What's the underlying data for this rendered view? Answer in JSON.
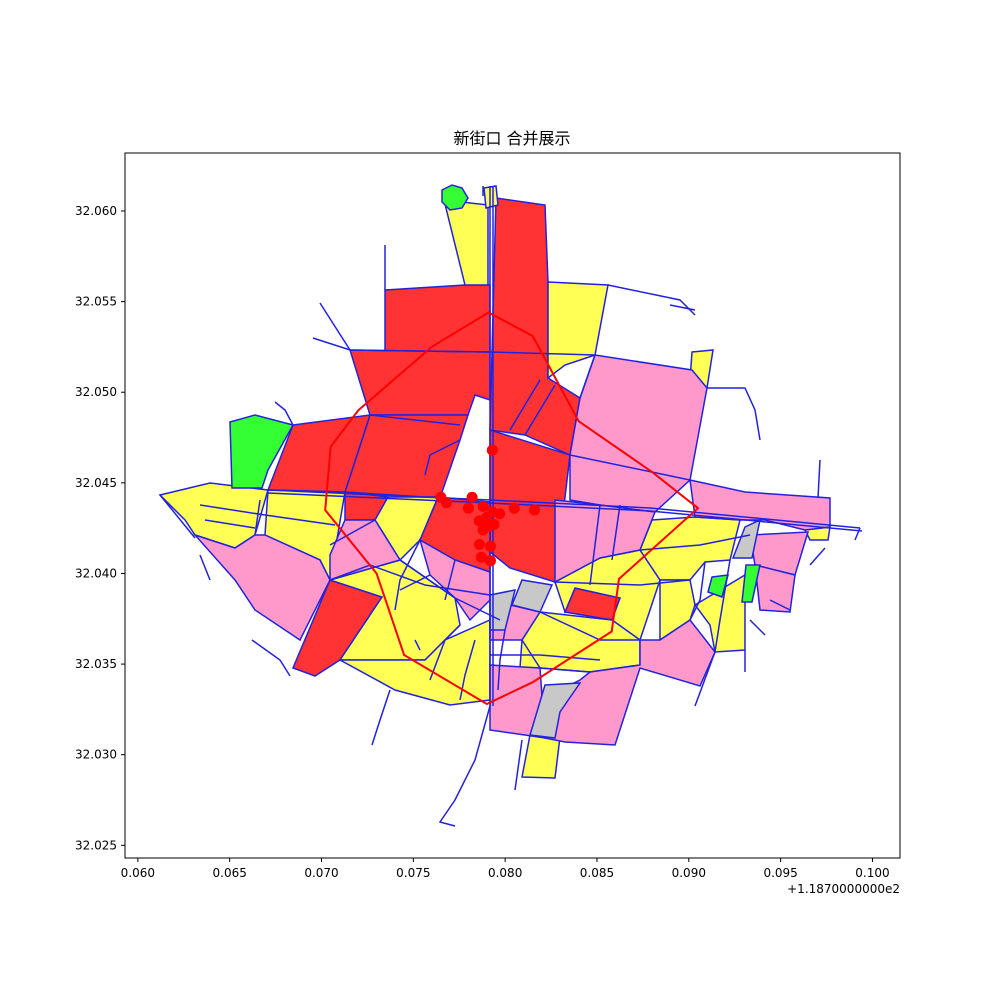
{
  "title": "新街口 合并展示",
  "axes": {
    "x_offset_label": "+1.1870000000e2",
    "x_ticks": [
      "0.060",
      "0.065",
      "0.070",
      "0.075",
      "0.080",
      "0.085",
      "0.090",
      "0.095",
      "0.100"
    ],
    "y_ticks": [
      "32.025",
      "32.030",
      "32.035",
      "32.040",
      "32.045",
      "32.050",
      "32.055",
      "32.060"
    ],
    "xlim": [
      0.0593,
      0.1015
    ],
    "ylim": [
      32.0243,
      32.0632
    ]
  },
  "colors": {
    "commercial": "#ff3333",
    "residential": "#ffff55",
    "public": "#ff99cc",
    "green": "#33ff33",
    "other": "#c8c8c8",
    "road": "#2222dd",
    "boundary": "#ff0000",
    "poi": "#ff0000"
  },
  "chart_data": {
    "type": "map",
    "grid": false,
    "boundary": [
      [
        0.0791,
        32.0544
      ],
      [
        0.0815,
        32.0531
      ],
      [
        0.084,
        32.0484
      ],
      [
        0.088,
        32.0456
      ],
      [
        0.0905,
        32.0436
      ],
      [
        0.0862,
        32.0397
      ],
      [
        0.0858,
        32.0368
      ],
      [
        0.0815,
        32.034
      ],
      [
        0.079,
        32.0328
      ],
      [
        0.0745,
        32.0355
      ],
      [
        0.073,
        32.04
      ],
      [
        0.0702,
        32.0435
      ],
      [
        0.0705,
        32.047
      ],
      [
        0.072,
        32.049
      ],
      [
        0.076,
        32.0525
      ]
    ],
    "poi_points": [
      [
        0.0793,
        32.0468
      ],
      [
        0.0765,
        32.0442
      ],
      [
        0.0768,
        32.0439
      ],
      [
        0.0782,
        32.0442
      ],
      [
        0.078,
        32.0436
      ],
      [
        0.0788,
        32.0437
      ],
      [
        0.0793,
        32.0434
      ],
      [
        0.079,
        32.0431
      ],
      [
        0.0797,
        32.0433
      ],
      [
        0.0805,
        32.0436
      ],
      [
        0.0816,
        32.0435
      ],
      [
        0.0786,
        32.0429
      ],
      [
        0.0791,
        32.0426
      ],
      [
        0.0788,
        32.0424
      ],
      [
        0.0794,
        32.0427
      ],
      [
        0.0786,
        32.0416
      ],
      [
        0.0792,
        32.0415
      ],
      [
        0.0787,
        32.0409
      ],
      [
        0.0792,
        32.0407
      ]
    ]
  }
}
